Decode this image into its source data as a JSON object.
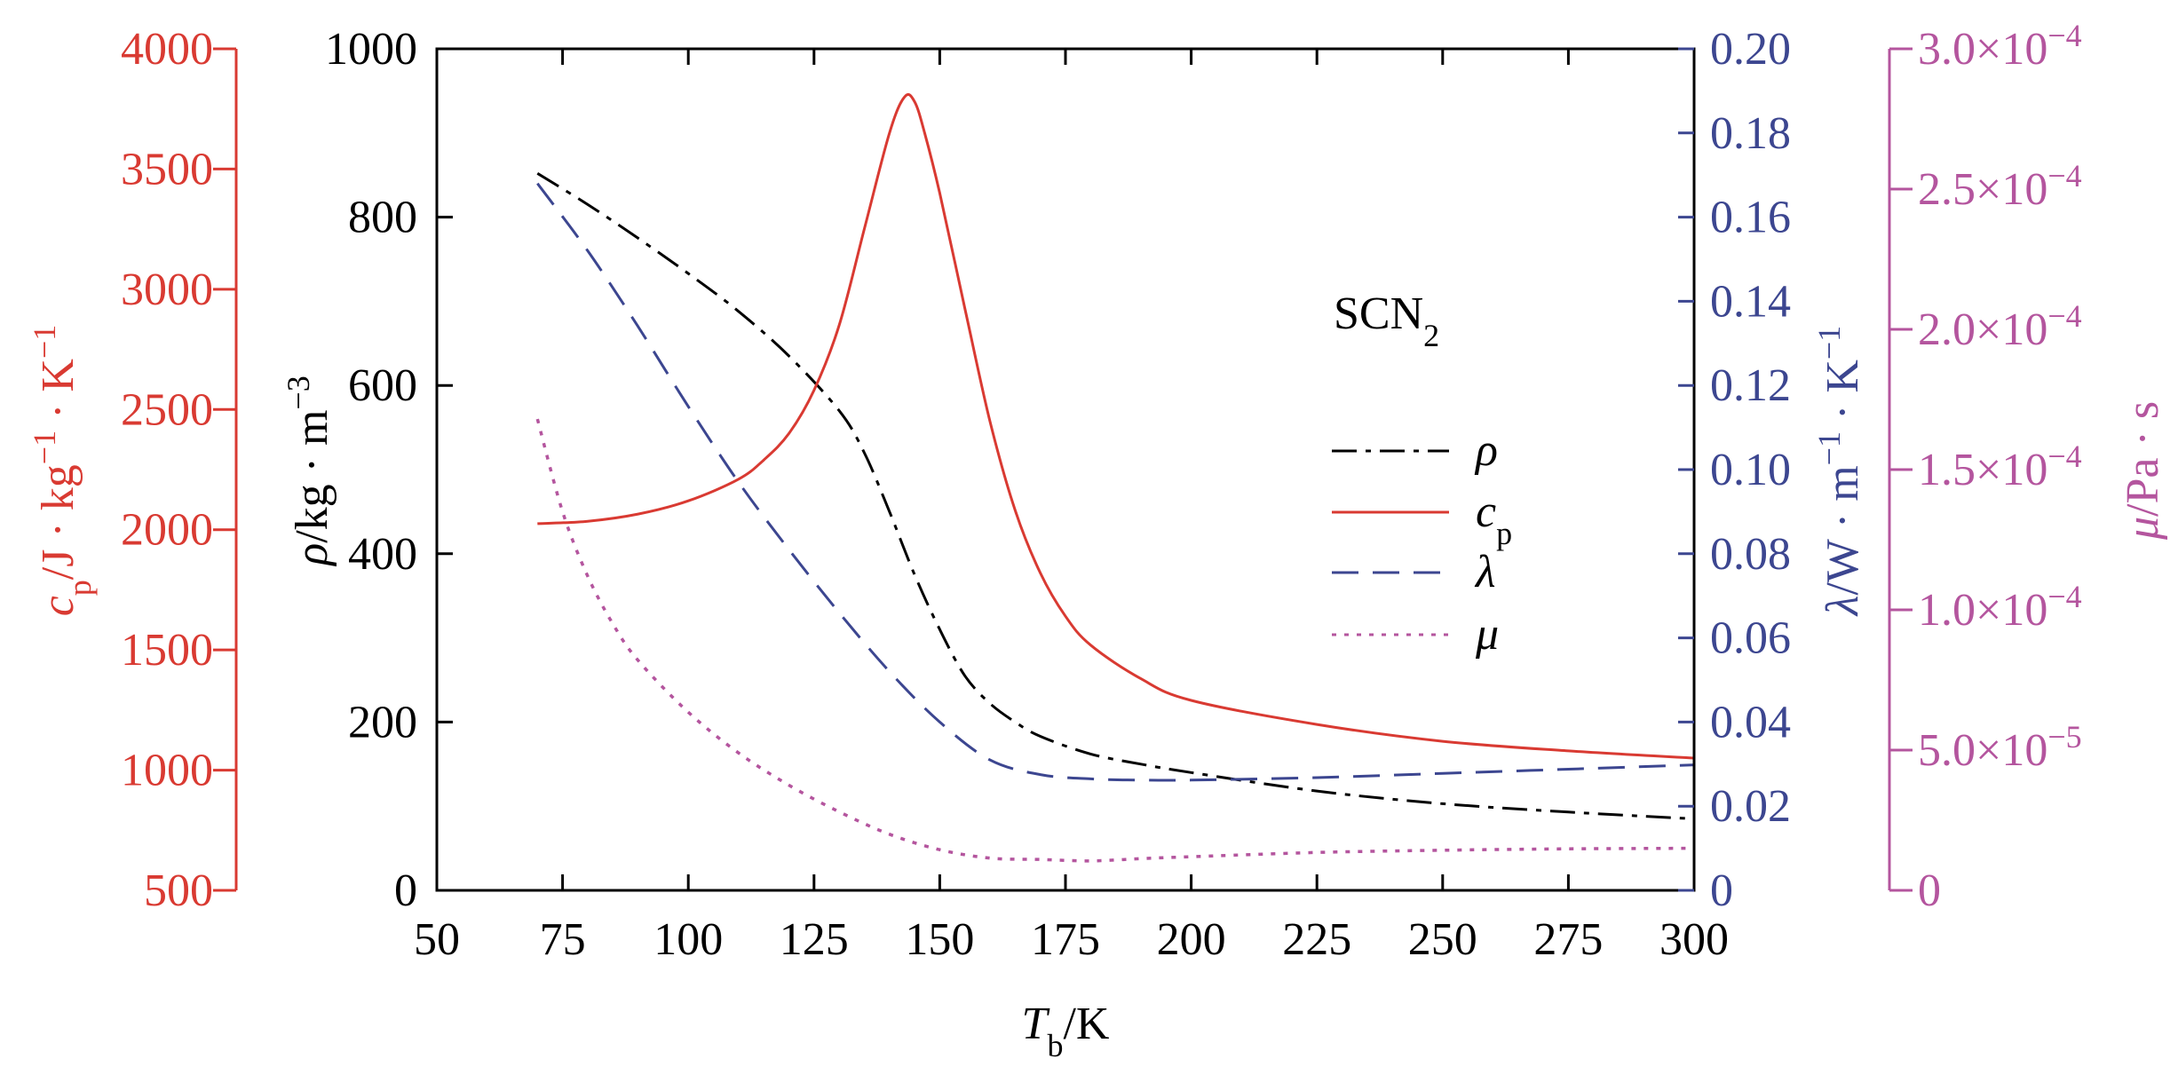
{
  "chart_data": {
    "type": "line",
    "title": "SCN2",
    "legend_title_main": "SCN",
    "legend_title_sub": "2",
    "legend_position": "center-right",
    "grid": false,
    "x_axis": {
      "label_symbol": "T",
      "label_sub": "b",
      "label_unit": "/K",
      "range": [
        50,
        300
      ],
      "ticks": [
        50,
        75,
        100,
        125,
        150,
        175,
        200,
        225,
        250,
        275,
        300
      ],
      "tick_labels": [
        "50",
        "75",
        "100",
        "125",
        "150",
        "175",
        "200",
        "225",
        "250",
        "275",
        "300"
      ]
    },
    "axes": {
      "rho": {
        "side": "left-inner",
        "color": "#000000",
        "label_symbol": "ρ",
        "label_text": "/kg · m",
        "label_sup": "−3",
        "range": [
          0,
          1000
        ],
        "ticks": [
          0,
          200,
          400,
          600,
          800,
          1000
        ],
        "tick_labels": [
          "0",
          "200",
          "400",
          "600",
          "800",
          "1000"
        ]
      },
      "cp": {
        "side": "left-outer",
        "color": "#d93a32",
        "label_symbol": "c",
        "label_sub": "p",
        "label_text": "/J · kg",
        "label_sup1": "−1",
        "label_mid": " · K",
        "label_sup2": "−1",
        "range": [
          500,
          4000
        ],
        "ticks": [
          500,
          1000,
          1500,
          2000,
          2500,
          3000,
          3500,
          4000
        ],
        "tick_labels": [
          "500",
          "1000",
          "1500",
          "2000",
          "2500",
          "3000",
          "3500",
          "4000"
        ]
      },
      "lambda": {
        "side": "right-inner",
        "color": "#3c4690",
        "label_symbol": "λ",
        "label_text": "/W · m",
        "label_sup1": "−1",
        "label_mid": " · K",
        "label_sup2": "−1",
        "range": [
          0,
          0.2
        ],
        "ticks": [
          0,
          0.02,
          0.04,
          0.06,
          0.08,
          0.1,
          0.12,
          0.14,
          0.16,
          0.18,
          0.2
        ],
        "tick_labels": [
          "0",
          "0.02",
          "0.04",
          "0.06",
          "0.08",
          "0.10",
          "0.12",
          "0.14",
          "0.16",
          "0.18",
          "0.20"
        ]
      },
      "mu": {
        "side": "right-outer",
        "color": "#b4559e",
        "label_symbol": "μ",
        "label_text": "/Pa · s",
        "range": [
          0,
          0.0003
        ],
        "ticks": [
          0,
          5e-05,
          0.0001,
          0.00015,
          0.0002,
          0.00025,
          0.0003
        ],
        "tick_labels": [
          {
            "mant": "0",
            "exp": ""
          },
          {
            "mant": "5.0×10",
            "exp": "−5"
          },
          {
            "mant": "1.0×10",
            "exp": "−4"
          },
          {
            "mant": "1.5×10",
            "exp": "−4"
          },
          {
            "mant": "2.0×10",
            "exp": "−4"
          },
          {
            "mant": "2.5×10",
            "exp": "−4"
          },
          {
            "mant": "3.0×10",
            "exp": "−4"
          }
        ]
      }
    },
    "series": [
      {
        "name": "ρ",
        "legend_main": "ρ",
        "legend_sub": "",
        "axis": "rho",
        "color": "#000000",
        "dash": "dashdot",
        "x": [
          70,
          80,
          90,
          100,
          110,
          120,
          130,
          135,
          140,
          145,
          150,
          155,
          160,
          165,
          170,
          180,
          190,
          200,
          225,
          250,
          275,
          300
        ],
        "y": [
          852,
          815,
          775,
          733,
          688,
          635,
          570,
          520,
          450,
          375,
          310,
          255,
          222,
          200,
          183,
          162,
          150,
          140,
          118,
          103,
          93,
          85
        ]
      },
      {
        "name": "cp",
        "legend_main": "c",
        "legend_sub": "p",
        "axis": "cp",
        "color": "#d93a32",
        "dash": "solid",
        "x": [
          70,
          80,
          90,
          100,
          110,
          115,
          120,
          125,
          130,
          135,
          140,
          143,
          145,
          147,
          150,
          155,
          160,
          165,
          170,
          175,
          180,
          190,
          200,
          225,
          250,
          275,
          300
        ],
        "y": [
          2025,
          2035,
          2065,
          2120,
          2210,
          2290,
          2400,
          2580,
          2850,
          3250,
          3650,
          3800,
          3780,
          3650,
          3400,
          2920,
          2450,
          2080,
          1820,
          1640,
          1520,
          1380,
          1290,
          1190,
          1120,
          1080,
          1050
        ]
      },
      {
        "name": "λ",
        "legend_main": "λ",
        "legend_sub": "",
        "axis": "lambda",
        "color": "#3c4690",
        "dash": "dashed",
        "x": [
          70,
          80,
          90,
          100,
          110,
          120,
          130,
          140,
          150,
          160,
          170,
          180,
          190,
          200,
          225,
          250,
          275,
          300
        ],
        "y": [
          0.168,
          0.152,
          0.134,
          0.115,
          0.097,
          0.081,
          0.066,
          0.052,
          0.04,
          0.031,
          0.0275,
          0.0265,
          0.0262,
          0.0262,
          0.0268,
          0.0278,
          0.0288,
          0.0298
        ]
      },
      {
        "name": "μ",
        "legend_main": "μ",
        "legend_sub": "",
        "axis": "mu",
        "color": "#b4559e",
        "dash": "dotted",
        "x": [
          70,
          75,
          80,
          85,
          90,
          100,
          110,
          120,
          130,
          140,
          150,
          160,
          170,
          180,
          190,
          200,
          225,
          250,
          275,
          300
        ],
        "y": [
          0.000168,
          0.000135,
          0.000112,
          9.5e-05,
          8.2e-05,
          6.35e-05,
          4.9e-05,
          3.75e-05,
          2.8e-05,
          2e-05,
          1.45e-05,
          1.15e-05,
          1.1e-05,
          1.05e-05,
          1.13e-05,
          1.2e-05,
          1.35e-05,
          1.43e-05,
          1.48e-05,
          1.5e-05
        ]
      }
    ]
  }
}
